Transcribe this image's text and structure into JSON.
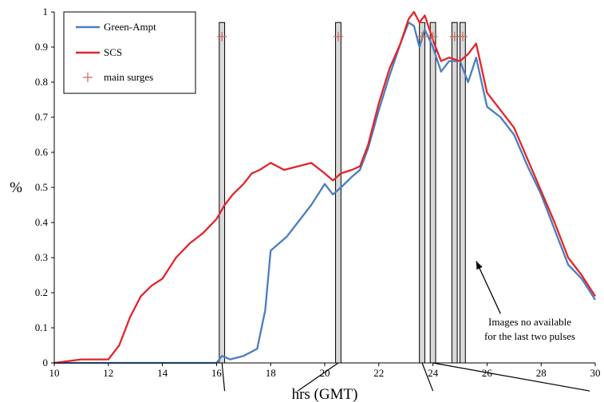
{
  "chart_data": {
    "type": "line",
    "title": "",
    "xlabel": "hrs (GMT)",
    "ylabel": "%",
    "xlim": [
      10,
      30
    ],
    "ylim": [
      0,
      1
    ],
    "x_ticks": [
      10,
      12,
      14,
      16,
      18,
      20,
      22,
      24,
      26,
      28,
      30
    ],
    "y_ticks": [
      0,
      0.1,
      0.2,
      0.3,
      0.4,
      0.5,
      0.6,
      0.7,
      0.8,
      0.9,
      1
    ],
    "y_tick_labels": [
      "0",
      "0.1",
      "0.2",
      "0.3",
      "0.4",
      "0.5",
      "0.6",
      "0.7",
      "0.8",
      "0.9",
      "1"
    ],
    "grid": false,
    "legend_position": "top-left",
    "series": [
      {
        "name": "Green-Ampt",
        "color": "#4a7ebf",
        "x": [
          10,
          11,
          12,
          13,
          14,
          15,
          16,
          16.2,
          16.5,
          17,
          17.5,
          17.8,
          18,
          18.3,
          18.6,
          19,
          19.5,
          20,
          20.3,
          20.6,
          21,
          21.3,
          21.6,
          22,
          22.4,
          22.8,
          23.1,
          23.3,
          23.5,
          23.7,
          24,
          24.3,
          24.6,
          25,
          25.3,
          25.6,
          26,
          26.5,
          27,
          27.5,
          28,
          28.5,
          29,
          29.5,
          30
        ],
        "y": [
          0,
          0,
          0,
          0,
          0,
          0,
          0,
          0.02,
          0.01,
          0.02,
          0.04,
          0.15,
          0.32,
          0.34,
          0.36,
          0.4,
          0.45,
          0.51,
          0.48,
          0.5,
          0.53,
          0.55,
          0.61,
          0.72,
          0.82,
          0.91,
          0.97,
          0.96,
          0.9,
          0.95,
          0.9,
          0.83,
          0.86,
          0.86,
          0.8,
          0.87,
          0.73,
          0.7,
          0.65,
          0.56,
          0.48,
          0.38,
          0.28,
          0.24,
          0.18
        ]
      },
      {
        "name": "SCS",
        "color": "#e3242b",
        "x": [
          10,
          11,
          12,
          12.4,
          12.8,
          13.2,
          13.6,
          14,
          14.5,
          15,
          15.5,
          16,
          16.3,
          16.6,
          17,
          17.3,
          17.6,
          18,
          18.5,
          19,
          19.5,
          20,
          20.3,
          20.6,
          21,
          21.3,
          21.6,
          22,
          22.4,
          22.8,
          23.1,
          23.3,
          23.5,
          23.7,
          24,
          24.3,
          24.6,
          25,
          25.3,
          25.6,
          26,
          26.5,
          27,
          27.5,
          28,
          28.5,
          29,
          29.5,
          30
        ],
        "y": [
          0,
          0.01,
          0.01,
          0.05,
          0.13,
          0.19,
          0.22,
          0.24,
          0.3,
          0.34,
          0.37,
          0.41,
          0.45,
          0.48,
          0.51,
          0.54,
          0.55,
          0.57,
          0.55,
          0.56,
          0.57,
          0.54,
          0.52,
          0.54,
          0.55,
          0.56,
          0.62,
          0.74,
          0.84,
          0.91,
          0.98,
          1,
          0.97,
          0.99,
          0.92,
          0.86,
          0.87,
          0.86,
          0.88,
          0.91,
          0.77,
          0.72,
          0.67,
          0.58,
          0.49,
          0.4,
          0.3,
          0.25,
          0.19
        ]
      }
    ],
    "surges": {
      "name": "main surges",
      "color": "#d46a5f",
      "marker_y": 0.93,
      "bars": [
        {
          "x0": 16.1,
          "x1": 16.3
        },
        {
          "x0": 20.4,
          "x1": 20.6
        },
        {
          "x0": 23.5,
          "x1": 23.7
        },
        {
          "x0": 23.9,
          "x1": 24.1
        },
        {
          "x0": 24.7,
          "x1": 24.9
        },
        {
          "x0": 25.0,
          "x1": 25.2
        }
      ],
      "bar_top": 0.97,
      "bar_color": "#d9d9d9"
    },
    "annotation": {
      "lines": [
        "Images no available",
        "for the last two pulses"
      ],
      "arrow_target": {
        "x": 25.6,
        "y": 0.29
      },
      "arrow_start": {
        "x": 26.5,
        "y": 0.14
      }
    },
    "bottom_leaders": [
      {
        "from_x": 16.2,
        "to": [
          16.3,
          -0.08
        ]
      },
      {
        "from_x": 20.5,
        "to": [
          19.0,
          -0.08
        ]
      },
      {
        "from_x": 23.6,
        "to": [
          24.0,
          -0.08
        ]
      },
      {
        "from_x": 24.0,
        "to": [
          29.8,
          -0.08
        ]
      }
    ]
  }
}
